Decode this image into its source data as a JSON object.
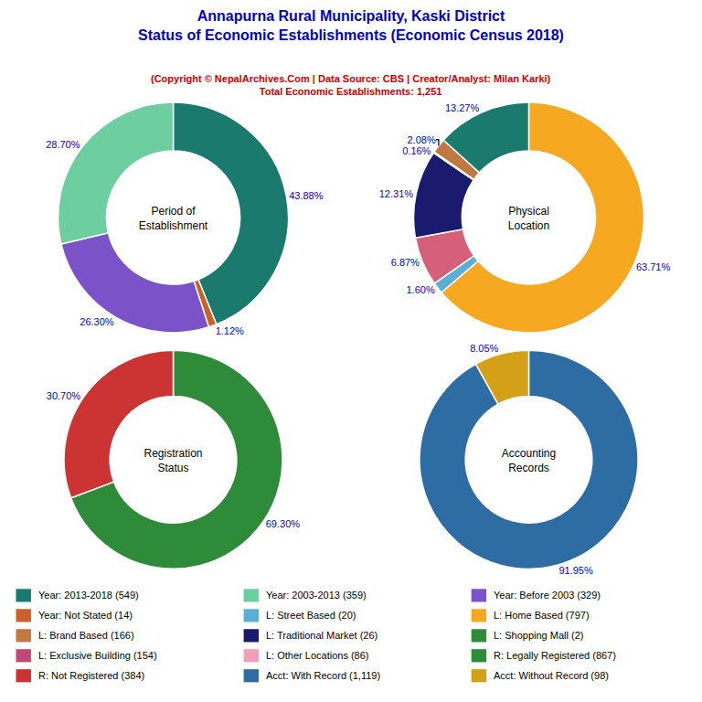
{
  "title": "Annapurna Rural Municipality, Kaski District\nStatus of Economic Establishments (Economic Census 2018)",
  "subtitle": "(Copyright © NepalArchives.Com | Data Source: CBS | Creator/Analyst: Milan Karki)\nTotal Economic Establishments: 1,251",
  "title_color": "#0000CC",
  "subtitle_color": "#CC0000",
  "data_label_color": "#0000CC",
  "chart_data": [
    {
      "type": "pie",
      "title": "Period of\nEstablishment",
      "values": [
        43.88,
        1.12,
        26.3,
        28.7
      ],
      "value_labels": [
        "43.88%",
        "1.12%",
        "26.30%",
        "28.70%"
      ],
      "colors": [
        "#1a7a6e",
        "#c8622a",
        "#7b52c8",
        "#6dcea0"
      ],
      "data_labels": true
    },
    {
      "type": "pie",
      "title": "Physical\nLocation",
      "values": [
        63.71,
        1.6,
        6.87,
        12.31,
        0.16,
        2.08,
        13.27
      ],
      "value_labels": [
        "63.71%",
        "1.60%",
        "6.87%",
        "12.31%",
        "0.16%",
        "2.08%",
        "13.27%"
      ],
      "colors": [
        "#f5a820",
        "#5bafd6",
        "#d4607a",
        "#1a1a6e",
        "#2e8b3a",
        "#c07840",
        "#1a7a6e"
      ],
      "data_labels": true
    },
    {
      "type": "pie",
      "title": "Registration\nStatus",
      "values": [
        69.3,
        30.7
      ],
      "value_labels": [
        "69.30%",
        "30.70%"
      ],
      "colors": [
        "#2e8b3a",
        "#cc3333"
      ],
      "data_labels": true
    },
    {
      "type": "pie",
      "title": "Accounting\nRecords",
      "values": [
        91.95,
        8.05
      ],
      "value_labels": [
        "91.95%",
        "8.05%"
      ],
      "colors": [
        "#2e6da4",
        "#d4a017"
      ],
      "data_labels": true
    }
  ],
  "legend_items": [
    {
      "label": "Year: 2013-2018 (549)",
      "color": "#1a7a6e"
    },
    {
      "label": "Year: Not Stated (14)",
      "color": "#c8622a"
    },
    {
      "label": "L: Brand Based (166)",
      "color": "#c07840"
    },
    {
      "label": "L: Exclusive Building (154)",
      "color": "#c04878"
    },
    {
      "label": "R: Not Registered (384)",
      "color": "#cc3333"
    },
    {
      "label": "Year: 2003-2013 (359)",
      "color": "#6dcea0"
    },
    {
      "label": "L: Street Based (20)",
      "color": "#5bafd6"
    },
    {
      "label": "L: Traditional Market (26)",
      "color": "#1a1a6e"
    },
    {
      "label": "L: Other Locations (86)",
      "color": "#f0a0b8"
    },
    {
      "label": "Acct: With Record (1,119)",
      "color": "#2e6da4"
    },
    {
      "label": "Year: Before 2003 (329)",
      "color": "#7b52c8"
    },
    {
      "label": "L: Home Based (797)",
      "color": "#f5a820"
    },
    {
      "label": "L: Shopping Mall (2)",
      "color": "#2e8b3a"
    },
    {
      "label": "R: Legally Registered (867)",
      "color": "#2e8b3a"
    },
    {
      "label": "Acct: Without Record (98)",
      "color": "#d4a017"
    }
  ]
}
